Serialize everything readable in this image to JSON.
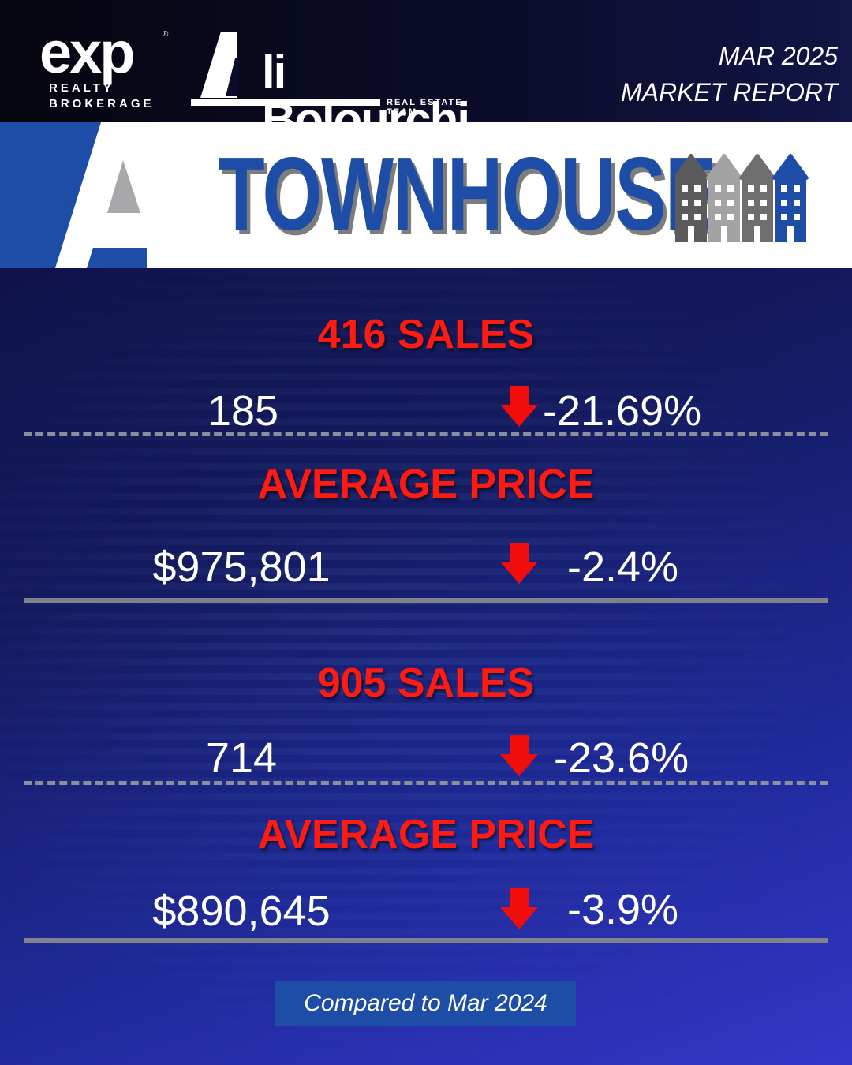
{
  "header": {
    "exp_logo": {
      "word": "exp",
      "reg": "®",
      "line1": "REALTY",
      "line2": "BROKERAGE"
    },
    "team_logo": {
      "name": "li Bolourchi",
      "tagline": "REAL ESTATE TEAM"
    },
    "report_month": "MAR 2025",
    "report_title": "MARKET REPORT"
  },
  "banner": {
    "title": "TOWNHOUSE",
    "icon": "townhouse-row-icon"
  },
  "sections": [
    {
      "sales_heading": "416 SALES",
      "sales_value": "185",
      "sales_change": "-21.69%",
      "price_heading": "AVERAGE PRICE",
      "price_value": "$975,801",
      "price_change": "-2.4%"
    },
    {
      "sales_heading": "905 SALES",
      "sales_value": "714",
      "sales_change": "-23.6%",
      "price_heading": "AVERAGE PRICE",
      "price_value": "$890,645",
      "price_change": "-3.9%"
    }
  ],
  "footer": {
    "compare_label": "Compared to Mar 2024"
  },
  "colors": {
    "brand_blue": "#1d4da6",
    "heading_red": "#ff1a12",
    "arrow_red": "#f20d0d",
    "gray": "#7d828c"
  },
  "icons": {
    "change_indicator": "down-arrow-icon"
  }
}
